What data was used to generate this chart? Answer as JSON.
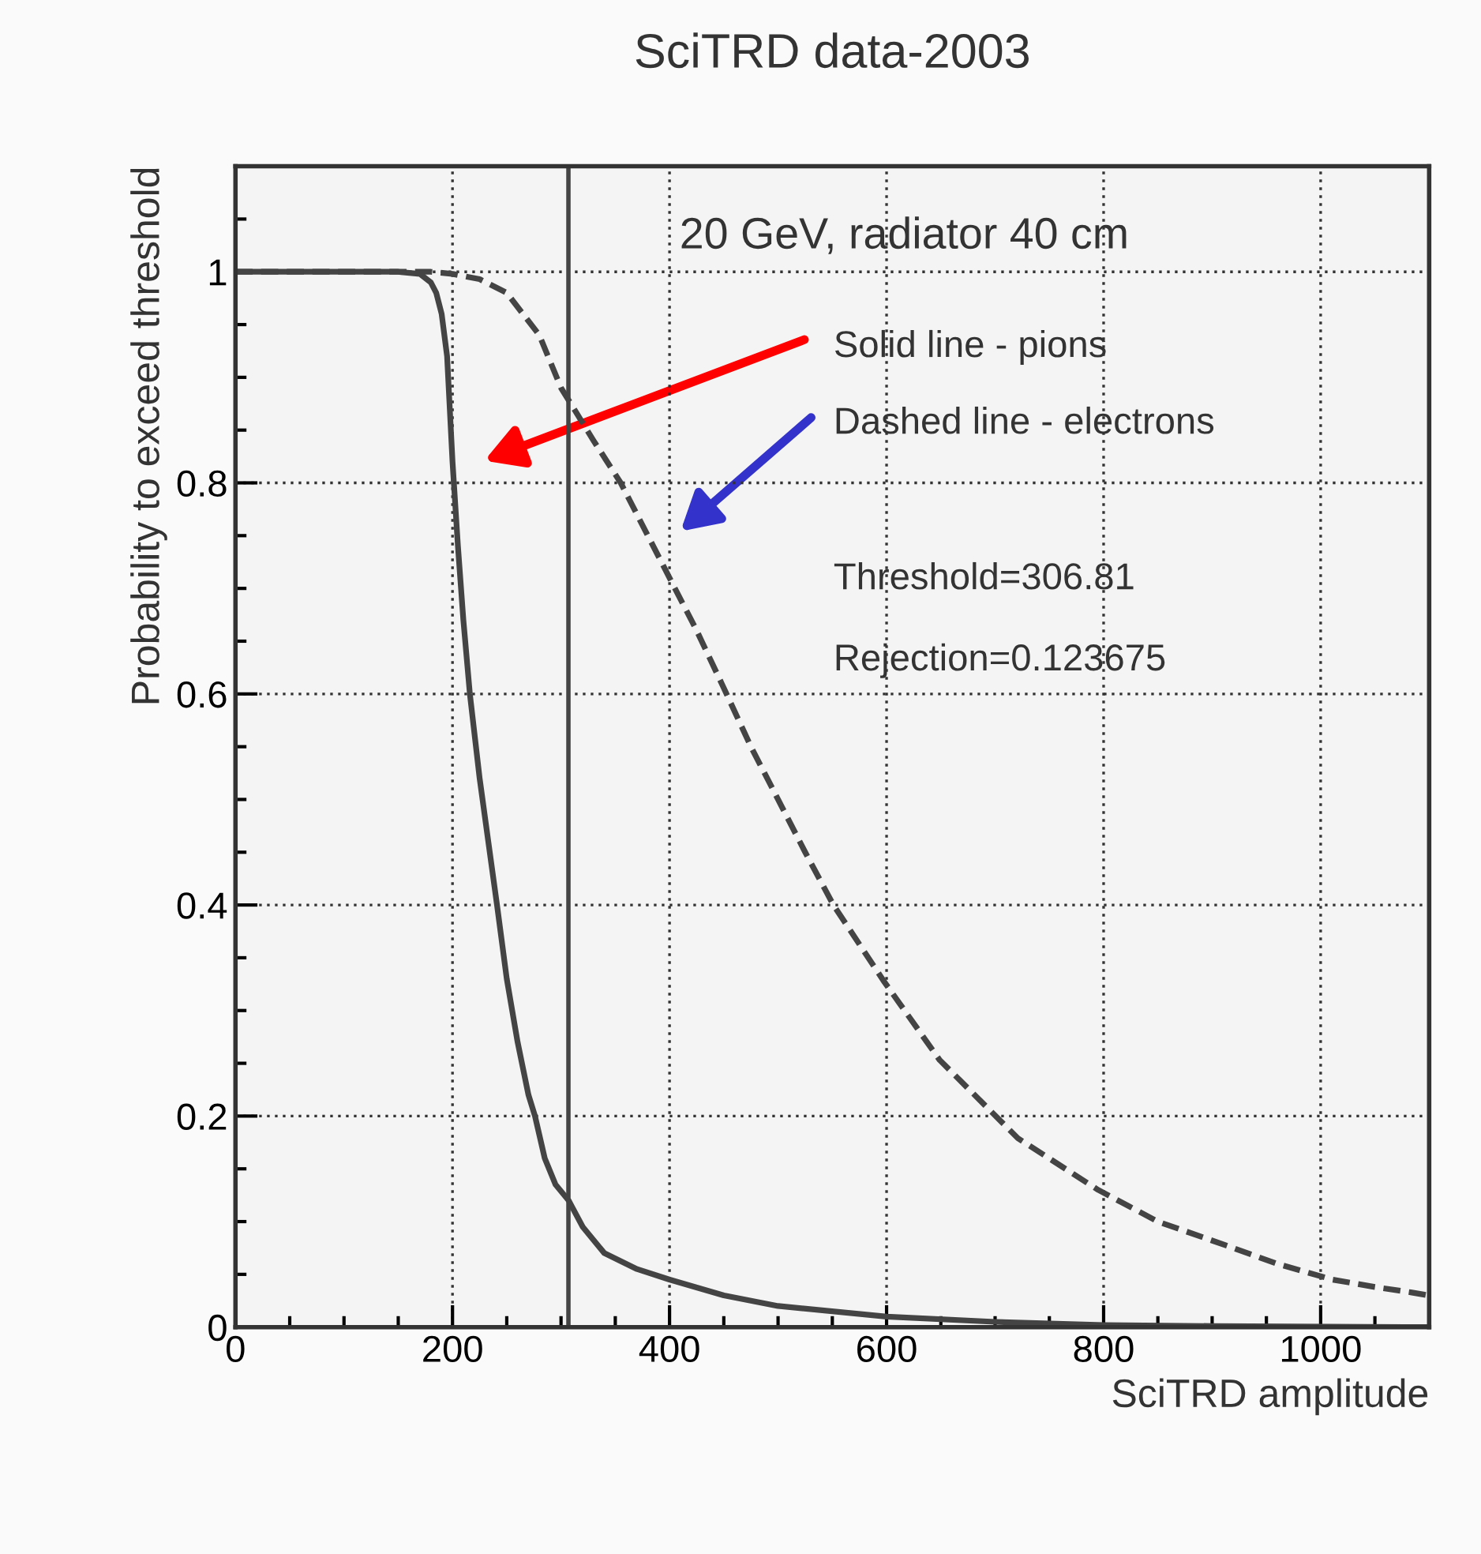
{
  "chart_data": {
    "type": "line",
    "title": "SciTRD data-2003",
    "xlabel": "SciTRD amplitude",
    "ylabel": "Probability to exceed threshold",
    "annotations": [
      "20 GeV, radiator 40 cm",
      "Solid line - pions",
      "Dashed line - electrons",
      "Threshold=306.81",
      "Rejection=0.123675"
    ],
    "series": [
      {
        "color": "#444444",
        "line_style": "solid",
        "x": [
          0,
          150,
          170,
          180,
          185,
          190,
          195,
          200,
          205,
          210,
          216,
          225,
          233,
          241,
          250,
          260,
          270,
          276,
          285,
          295,
          307,
          320,
          340,
          370,
          400,
          450,
          500,
          600,
          700,
          800,
          900,
          1100
        ],
        "values": [
          1,
          1,
          0.998,
          0.99,
          0.98,
          0.96,
          0.92,
          0.82,
          0.74,
          0.67,
          0.6,
          0.52,
          0.46,
          0.4,
          0.33,
          0.27,
          0.22,
          0.2,
          0.16,
          0.135,
          0.12,
          0.095,
          0.07,
          0.055,
          0.045,
          0.03,
          0.02,
          0.01,
          0.005,
          0.002,
          0.001,
          0
        ]
      },
      {
        "color": "#444444",
        "line_style": "dashed",
        "x": [
          0,
          180,
          200,
          225,
          250,
          280,
          300,
          330,
          355,
          380,
          400,
          425,
          448,
          475,
          500,
          525,
          551,
          598,
          649,
          721,
          795,
          850,
          914,
          960,
          1011,
          1050,
          1083,
          1100
        ],
        "values": [
          1,
          1,
          0.998,
          0.993,
          0.98,
          0.94,
          0.89,
          0.84,
          0.8,
          0.75,
          0.71,
          0.66,
          0.61,
          0.55,
          0.5,
          0.45,
          0.4,
          0.327,
          0.253,
          0.179,
          0.13,
          0.1,
          0.077,
          0.06,
          0.045,
          0.038,
          0.033,
          0.03
        ]
      }
    ],
    "ref_lines": [
      {
        "axis": "x",
        "value": 306.81,
        "color": "#444444",
        "line_style": "solid"
      }
    ],
    "xlim": [
      0,
      1100
    ],
    "xticks": [
      0,
      200,
      400,
      600,
      800,
      1000
    ],
    "ylim": [
      0,
      1.1
    ],
    "yticks": [
      0,
      0.2,
      0.4,
      0.6,
      0.8,
      1
    ],
    "grid": true,
    "legend": false,
    "marker": "none"
  }
}
